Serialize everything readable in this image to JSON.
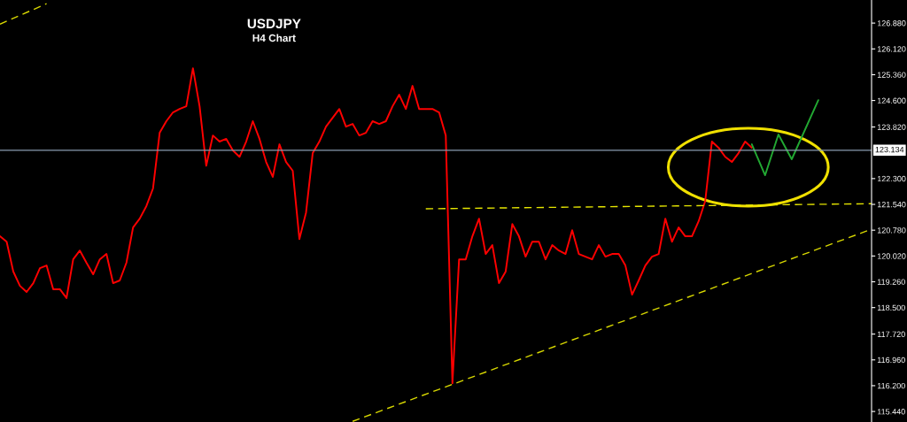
{
  "chart_data": {
    "type": "line",
    "title": "USDJPY",
    "subtitle": "H4 Chart",
    "categories": [
      null,
      null,
      null,
      null,
      null,
      null,
      null,
      null,
      null,
      null,
      null,
      null,
      null,
      null,
      null,
      null,
      null,
      null,
      null,
      null,
      null,
      null,
      null,
      null,
      null,
      null,
      null,
      null,
      null,
      null,
      null,
      null,
      null,
      null,
      null,
      null,
      null,
      null,
      null,
      null,
      null,
      null,
      null,
      null,
      null,
      null,
      null,
      null,
      null,
      null,
      null,
      null,
      null,
      null,
      null,
      null,
      null,
      null,
      null,
      null,
      null,
      null,
      null,
      null,
      null,
      null,
      null,
      null,
      null,
      null,
      null,
      null,
      null,
      null,
      null,
      null,
      null,
      null,
      null,
      null,
      null,
      null,
      null,
      null,
      null,
      null,
      null,
      null,
      null,
      null,
      null,
      null,
      null,
      null,
      null,
      null,
      null,
      null,
      null,
      null,
      null,
      null,
      null,
      null,
      null,
      null,
      null,
      null,
      null,
      null,
      null,
      null,
      null,
      null,
      null,
      null,
      null,
      null,
      null,
      null,
      null,
      null,
      null,
      null,
      null,
      null,
      null,
      null,
      null,
      null,
      null,
      null
    ],
    "series": [
      {
        "color": "#ff0000",
        "line_style": "solid",
        "values": [
          120.6,
          120.44,
          119.56,
          119.14,
          118.96,
          119.22,
          119.66,
          119.74,
          119.04,
          119.04,
          118.78,
          119.92,
          120.18,
          119.82,
          119.48,
          119.92,
          120.08,
          119.22,
          119.3,
          119.82,
          120.86,
          121.12,
          121.49,
          122.01,
          123.65,
          123.99,
          124.25,
          124.35,
          124.43,
          125.55,
          124.43,
          122.68,
          123.57,
          123.39,
          123.47,
          123.13,
          122.94,
          123.39,
          123.99,
          123.47,
          122.79,
          122.35,
          123.31,
          122.79,
          122.53,
          120.52,
          121.3,
          123.05,
          123.39,
          123.83,
          124.09,
          124.35,
          123.83,
          123.91,
          123.57,
          123.65,
          123.99,
          123.91,
          123.99,
          124.43,
          124.77,
          124.35,
          125.03,
          124.35,
          124.35,
          124.35,
          124.25,
          123.57,
          116.27,
          119.92,
          119.92,
          120.6,
          121.12,
          120.08,
          120.34,
          119.22,
          119.56,
          120.96,
          120.6,
          120.0,
          120.44,
          120.44,
          119.92,
          120.34,
          120.18,
          120.08,
          120.78,
          120.08,
          120.0,
          119.92,
          120.34,
          120.0,
          120.08,
          120.08,
          119.74,
          118.88,
          119.3,
          119.74,
          120.0,
          120.08,
          121.12,
          120.44,
          120.86,
          120.6,
          120.6,
          121.04,
          121.64,
          123.39,
          123.21,
          122.94,
          122.79,
          123.05,
          123.39,
          123.21,
          null,
          null,
          null,
          null,
          null,
          null,
          null,
          null,
          null,
          null,
          null,
          null,
          null,
          null,
          null,
          null,
          null,
          null
        ]
      },
      {
        "color": "#22a832",
        "line_style": "solid",
        "values": [
          null,
          null,
          null,
          null,
          null,
          null,
          null,
          null,
          null,
          null,
          null,
          null,
          null,
          null,
          null,
          null,
          null,
          null,
          null,
          null,
          null,
          null,
          null,
          null,
          null,
          null,
          null,
          null,
          null,
          null,
          null,
          null,
          null,
          null,
          null,
          null,
          null,
          null,
          null,
          null,
          null,
          null,
          null,
          null,
          null,
          null,
          null,
          null,
          null,
          null,
          null,
          null,
          null,
          null,
          null,
          null,
          null,
          null,
          null,
          null,
          null,
          null,
          null,
          null,
          null,
          null,
          null,
          null,
          null,
          null,
          null,
          null,
          null,
          null,
          null,
          null,
          null,
          null,
          null,
          null,
          null,
          null,
          null,
          null,
          null,
          null,
          null,
          null,
          null,
          null,
          null,
          null,
          null,
          null,
          null,
          null,
          null,
          null,
          null,
          null,
          null,
          null,
          null,
          null,
          null,
          null,
          null,
          null,
          null,
          null,
          null,
          null,
          null,
          123.31,
          null,
          122.4,
          null,
          123.6,
          null,
          122.87,
          null,
          null,
          null,
          124.61,
          null,
          null,
          null,
          null,
          null,
          null,
          null,
          null
        ]
      },
      {
        "color": "#e6e600",
        "line_style": "dashed",
        "values": [
          null,
          null,
          null,
          null,
          null,
          null,
          null,
          null,
          null,
          null,
          null,
          null,
          null,
          null,
          null,
          null,
          null,
          null,
          null,
          null,
          null,
          null,
          null,
          null,
          null,
          null,
          null,
          null,
          null,
          null,
          null,
          null,
          null,
          null,
          null,
          null,
          null,
          null,
          null,
          null,
          null,
          null,
          null,
          null,
          null,
          null,
          null,
          null,
          null,
          null,
          null,
          null,
          null,
          null,
          null,
          null,
          null,
          null,
          null,
          null,
          null,
          null,
          null,
          null,
          121.41,
          null,
          null,
          null,
          null,
          null,
          null,
          null,
          null,
          null,
          null,
          null,
          null,
          null,
          null,
          null,
          null,
          null,
          null,
          null,
          null,
          null,
          null,
          null,
          null,
          null,
          null,
          null,
          null,
          null,
          null,
          null,
          null,
          null,
          null,
          null,
          null,
          null,
          null,
          null,
          null,
          null,
          null,
          null,
          null,
          null,
          null,
          null,
          null,
          null,
          null,
          null,
          null,
          null,
          null,
          null,
          null,
          null,
          null,
          null,
          null,
          null,
          null,
          null,
          null,
          null,
          null,
          121.56
        ]
      },
      {
        "color": "#d8d800",
        "line_style": "dashed",
        "values": [
          null,
          null,
          null,
          null,
          null,
          null,
          null,
          null,
          null,
          null,
          null,
          null,
          null,
          null,
          null,
          null,
          null,
          null,
          null,
          null,
          null,
          null,
          null,
          null,
          null,
          null,
          null,
          null,
          null,
          null,
          null,
          null,
          null,
          null,
          null,
          null,
          null,
          null,
          null,
          null,
          null,
          null,
          null,
          null,
          null,
          null,
          null,
          null,
          null,
          null,
          null,
          null,
          null,
          115.15,
          null,
          null,
          null,
          null,
          null,
          null,
          null,
          null,
          null,
          null,
          null,
          null,
          null,
          null,
          null,
          null,
          null,
          null,
          null,
          null,
          null,
          null,
          null,
          null,
          null,
          null,
          null,
          null,
          null,
          null,
          null,
          null,
          null,
          null,
          null,
          null,
          null,
          null,
          null,
          null,
          null,
          null,
          null,
          null,
          null,
          null,
          null,
          null,
          null,
          null,
          null,
          null,
          null,
          null,
          null,
          null,
          null,
          null,
          null,
          null,
          null,
          null,
          null,
          null,
          null,
          null,
          null,
          null,
          null,
          null,
          null,
          null,
          null,
          null,
          null,
          null,
          null,
          120.81
        ]
      },
      {
        "color": "#d8d800",
        "line_style": "dashed",
        "values": [
          126.85,
          null,
          null,
          null,
          null,
          null,
          null,
          127.45,
          null,
          null,
          null,
          null,
          null,
          null,
          null,
          null,
          null,
          null,
          null,
          null,
          null,
          null,
          null,
          null,
          null,
          null,
          null,
          null,
          null,
          null,
          null,
          null,
          null,
          null,
          null,
          null,
          null,
          null,
          null,
          null,
          null,
          null,
          null,
          null,
          null,
          null,
          null,
          null,
          null,
          null,
          null,
          null,
          null,
          null,
          null,
          null,
          null,
          null,
          null,
          null,
          null,
          null,
          null,
          null,
          null,
          null,
          null,
          null,
          null,
          null,
          null,
          null,
          null,
          null,
          null,
          null,
          null,
          null,
          null,
          null,
          null,
          null,
          null,
          null,
          null,
          null,
          null,
          null,
          null,
          null,
          null,
          null,
          null,
          null,
          null,
          null,
          null,
          null,
          null,
          null,
          null,
          null,
          null,
          null,
          null,
          null,
          null,
          null,
          null,
          null,
          null,
          null,
          null,
          null,
          null,
          null,
          null,
          null,
          null,
          null,
          null,
          null,
          null,
          null,
          null,
          null,
          null,
          null,
          null,
          null,
          null,
          null
        ]
      }
    ],
    "ylim": [
      115.13,
      127.56
    ],
    "yticks": [
      {
        "value": 126.88,
        "label": "126.880"
      },
      {
        "value": 126.12,
        "label": "126.120"
      },
      {
        "value": 125.36,
        "label": "125.360"
      },
      {
        "value": 124.6,
        "label": "124.600"
      },
      {
        "value": 123.82,
        "label": "123.820"
      },
      {
        "value": 122.3,
        "label": "122.300"
      },
      {
        "value": 121.54,
        "label": "121.540"
      },
      {
        "value": 120.78,
        "label": "120.780"
      },
      {
        "value": 120.02,
        "label": "120.020"
      },
      {
        "value": 119.26,
        "label": "119.260"
      },
      {
        "value": 118.5,
        "label": "118.500"
      },
      {
        "value": 117.72,
        "label": "117.720"
      },
      {
        "value": 116.96,
        "label": "116.960"
      },
      {
        "value": 116.2,
        "label": "116.200"
      },
      {
        "value": 115.44,
        "label": "115.440"
      }
    ],
    "ref_lines": [
      {
        "axis": "y",
        "value": 123.134,
        "label": "123.134",
        "color": "#8a9bb0",
        "line_style": "solid"
      }
    ],
    "tick_labels": "y",
    "grid": false,
    "legend": false,
    "marker": "none"
  }
}
